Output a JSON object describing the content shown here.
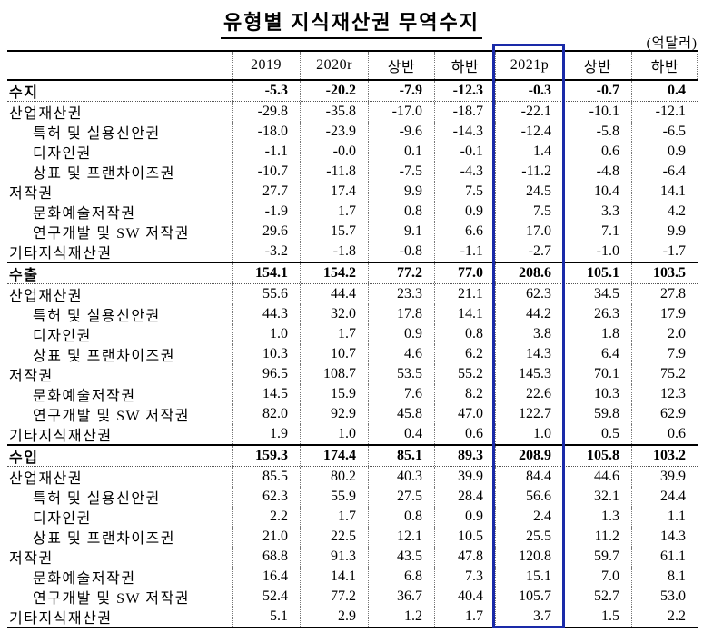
{
  "title": "유형별 지식재산권 무역수지",
  "unit_label": "(억달러)",
  "colors": {
    "highlight_border": "#1a2aa8",
    "grid_line": "#000000",
    "dotted_line": "#777777"
  },
  "table": {
    "col_headers": [
      "2019",
      "2020r",
      "상반",
      "하반",
      "2021p",
      "상반",
      "하반"
    ],
    "highlighted_col": "2021p",
    "sections": [
      {
        "name": "수지",
        "total": {
          "label": "수지",
          "values": [
            "-5.3",
            "-20.2",
            "-7.9",
            "-12.3",
            "-0.3",
            "-0.7",
            "0.4"
          ]
        },
        "rows": [
          {
            "label": "산업재산권",
            "indent": 0,
            "values": [
              "-29.8",
              "-35.8",
              "-17.0",
              "-18.7",
              "-22.1",
              "-10.1",
              "-12.1"
            ]
          },
          {
            "label": "특허 및 실용신안권",
            "indent": 1,
            "values": [
              "-18.0",
              "-23.9",
              "-9.6",
              "-14.3",
              "-12.4",
              "-5.8",
              "-6.5"
            ]
          },
          {
            "label": "디자인권",
            "indent": 1,
            "values": [
              "-1.1",
              "-0.0",
              "0.1",
              "-0.1",
              "1.4",
              "0.6",
              "0.9"
            ]
          },
          {
            "label": "상표 및 프랜차이즈권",
            "indent": 1,
            "values": [
              "-10.7",
              "-11.8",
              "-7.5",
              "-4.3",
              "-11.2",
              "-4.8",
              "-6.4"
            ]
          },
          {
            "label": "저작권",
            "indent": 0,
            "values": [
              "27.7",
              "17.4",
              "9.9",
              "7.5",
              "24.5",
              "10.4",
              "14.1"
            ]
          },
          {
            "label": "문화예술저작권",
            "indent": 1,
            "values": [
              "-1.9",
              "1.7",
              "0.8",
              "0.9",
              "7.5",
              "3.3",
              "4.2"
            ]
          },
          {
            "label": "연구개발 및 SW 저작권",
            "indent": 1,
            "values": [
              "29.6",
              "15.7",
              "9.1",
              "6.6",
              "17.0",
              "7.1",
              "9.9"
            ]
          },
          {
            "label": "기타지식재산권",
            "indent": 0,
            "values": [
              "-3.2",
              "-1.8",
              "-0.8",
              "-1.1",
              "-2.7",
              "-1.0",
              "-1.7"
            ]
          }
        ]
      },
      {
        "name": "수출",
        "total": {
          "label": "수출",
          "values": [
            "154.1",
            "154.2",
            "77.2",
            "77.0",
            "208.6",
            "105.1",
            "103.5"
          ]
        },
        "rows": [
          {
            "label": "산업재산권",
            "indent": 0,
            "values": [
              "55.6",
              "44.4",
              "23.3",
              "21.1",
              "62.3",
              "34.5",
              "27.8"
            ]
          },
          {
            "label": "특허 및 실용신안권",
            "indent": 1,
            "values": [
              "44.3",
              "32.0",
              "17.8",
              "14.1",
              "44.2",
              "26.3",
              "17.9"
            ]
          },
          {
            "label": "디자인권",
            "indent": 1,
            "values": [
              "1.0",
              "1.7",
              "0.9",
              "0.8",
              "3.8",
              "1.8",
              "2.0"
            ]
          },
          {
            "label": "상표 및 프랜차이즈권",
            "indent": 1,
            "values": [
              "10.3",
              "10.7",
              "4.6",
              "6.2",
              "14.3",
              "6.4",
              "7.9"
            ]
          },
          {
            "label": "저작권",
            "indent": 0,
            "values": [
              "96.5",
              "108.7",
              "53.5",
              "55.2",
              "145.3",
              "70.1",
              "75.2"
            ]
          },
          {
            "label": "문화예술저작권",
            "indent": 1,
            "values": [
              "14.5",
              "15.9",
              "7.6",
              "8.2",
              "22.6",
              "10.3",
              "12.3"
            ]
          },
          {
            "label": "연구개발 및 SW 저작권",
            "indent": 1,
            "values": [
              "82.0",
              "92.9",
              "45.8",
              "47.0",
              "122.7",
              "59.8",
              "62.9"
            ]
          },
          {
            "label": "기타지식재산권",
            "indent": 0,
            "values": [
              "1.9",
              "1.0",
              "0.4",
              "0.6",
              "1.0",
              "0.5",
              "0.6"
            ]
          }
        ]
      },
      {
        "name": "수입",
        "total": {
          "label": "수입",
          "values": [
            "159.3",
            "174.4",
            "85.1",
            "89.3",
            "208.9",
            "105.8",
            "103.2"
          ]
        },
        "rows": [
          {
            "label": "산업재산권",
            "indent": 0,
            "values": [
              "85.5",
              "80.2",
              "40.3",
              "39.9",
              "84.4",
              "44.6",
              "39.9"
            ]
          },
          {
            "label": "특허 및 실용신안권",
            "indent": 1,
            "values": [
              "62.3",
              "55.9",
              "27.5",
              "28.4",
              "56.6",
              "32.1",
              "24.4"
            ]
          },
          {
            "label": "디자인권",
            "indent": 1,
            "values": [
              "2.2",
              "1.7",
              "0.8",
              "0.9",
              "2.4",
              "1.3",
              "1.1"
            ]
          },
          {
            "label": "상표 및 프랜차이즈권",
            "indent": 1,
            "values": [
              "21.0",
              "22.5",
              "12.1",
              "10.5",
              "25.5",
              "11.2",
              "14.3"
            ]
          },
          {
            "label": "저작권",
            "indent": 0,
            "values": [
              "68.8",
              "91.3",
              "43.5",
              "47.8",
              "120.8",
              "59.7",
              "61.1"
            ]
          },
          {
            "label": "문화예술저작권",
            "indent": 1,
            "values": [
              "16.4",
              "14.1",
              "6.8",
              "7.3",
              "15.1",
              "7.0",
              "8.1"
            ]
          },
          {
            "label": "연구개발 및 SW 저작권",
            "indent": 1,
            "values": [
              "52.4",
              "77.2",
              "36.7",
              "40.4",
              "105.7",
              "52.7",
              "53.0"
            ]
          },
          {
            "label": "기타지식재산권",
            "indent": 0,
            "values": [
              "5.1",
              "2.9",
              "1.2",
              "1.7",
              "3.7",
              "1.5",
              "2.2"
            ]
          }
        ]
      }
    ]
  }
}
